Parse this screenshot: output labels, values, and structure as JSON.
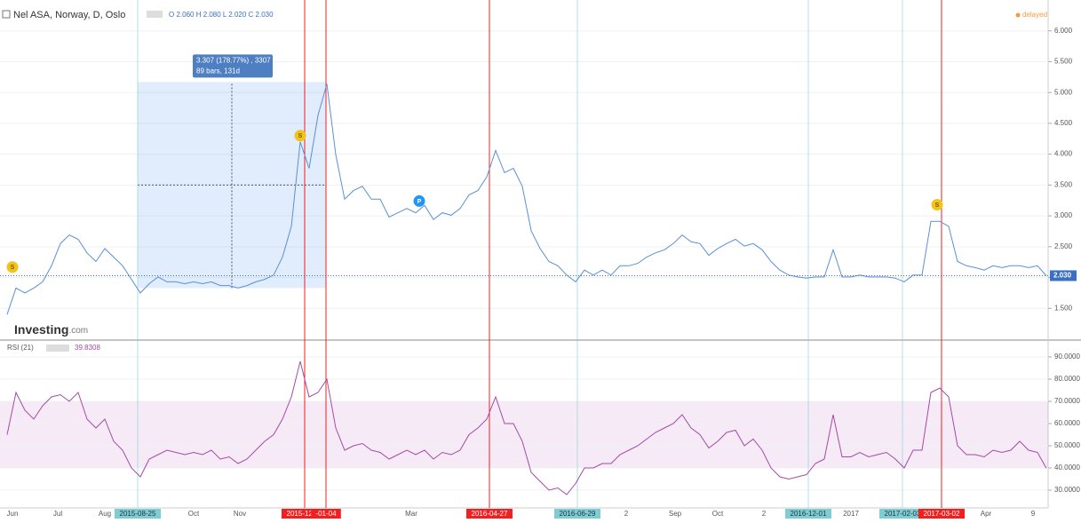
{
  "chart_data": {
    "type": "line",
    "title": "Nel ASA, Norway, D, Oslo",
    "legend_text": "O 2.060 H 2.080 L 2.020 C 2.030",
    "status": "delayed",
    "brand": "Investing",
    "brand_suffix": ".com",
    "xlim": [
      0,
      117
    ],
    "xticks": [
      {
        "value": 0.6,
        "label": "Jun"
      },
      {
        "value": 5.7,
        "label": "Jul"
      },
      {
        "value": 11,
        "label": "Aug"
      },
      {
        "value": 14.7,
        "label": "2015-08-25",
        "color": "#7fcdd3"
      },
      {
        "value": 21,
        "label": "Oct"
      },
      {
        "value": 26.2,
        "label": "Nov"
      },
      {
        "value": 33.5,
        "label": "2015-12-15",
        "color": "#f02020"
      },
      {
        "value": 35.9,
        "label": "-01-04",
        "color": "#f02020"
      },
      {
        "value": 45.5,
        "label": "Mar"
      },
      {
        "value": 54.3,
        "label": "2016-04-27",
        "color": "#f02020"
      },
      {
        "value": 64.2,
        "label": "2016-06-29",
        "color": "#7fcdd3"
      },
      {
        "value": 69.7,
        "label": "2"
      },
      {
        "value": 75.2,
        "label": "Sep"
      },
      {
        "value": 80,
        "label": "Oct"
      },
      {
        "value": 85.2,
        "label": "2"
      },
      {
        "value": 90.2,
        "label": "2016-12-01",
        "color": "#7fcdd3"
      },
      {
        "value": 95,
        "label": "2017"
      },
      {
        "value": 100.8,
        "label": "2017-02-03",
        "color": "#7fcdd3"
      },
      {
        "value": 105.2,
        "label": "2017-03-02",
        "color": "#f02020"
      },
      {
        "value": 110.2,
        "label": "Apr"
      },
      {
        "value": 115.5,
        "label": "9"
      }
    ],
    "price": {
      "name": "Nel ASA",
      "color": "#5b8fd6",
      "ylim": [
        1.0,
        6.5
      ],
      "yticks": [
        {
          "value": 1.5,
          "label": "1.500"
        },
        {
          "value": 2.0,
          "label": "2.000"
        },
        {
          "value": 2.5,
          "label": "2.500"
        },
        {
          "value": 3.0,
          "label": "3.000"
        },
        {
          "value": 3.5,
          "label": "3.500"
        },
        {
          "value": 4.0,
          "label": "4.000"
        },
        {
          "value": 4.5,
          "label": "4.500"
        },
        {
          "value": 5.0,
          "label": "5.000"
        },
        {
          "value": 5.5,
          "label": "5.500"
        },
        {
          "value": 6.0,
          "label": "6.000"
        }
      ],
      "values": [
        1.4,
        1.83,
        1.75,
        1.83,
        1.93,
        2.19,
        2.55,
        2.69,
        2.62,
        2.4,
        2.26,
        2.47,
        2.33,
        2.19,
        1.97,
        1.75,
        1.9,
        2.01,
        1.93,
        1.93,
        1.9,
        1.93,
        1.9,
        1.93,
        1.87,
        1.87,
        1.83,
        1.87,
        1.93,
        1.97,
        2.04,
        2.33,
        2.83,
        4.2,
        3.77,
        4.63,
        5.14,
        3.99,
        3.27,
        3.41,
        3.48,
        3.27,
        3.27,
        2.98,
        3.05,
        3.12,
        3.05,
        3.17,
        2.94,
        3.05,
        3.01,
        3.12,
        3.34,
        3.41,
        3.63,
        4.06,
        3.7,
        3.77,
        3.48,
        2.76,
        2.47,
        2.26,
        2.19,
        2.04,
        1.93,
        2.12,
        2.04,
        2.12,
        2.04,
        2.19,
        2.19,
        2.23,
        2.33,
        2.4,
        2.45,
        2.55,
        2.69,
        2.58,
        2.55,
        2.36,
        2.47,
        2.55,
        2.62,
        2.51,
        2.55,
        2.45,
        2.26,
        2.12,
        2.04,
        2.01,
        1.99,
        2.01,
        2.01,
        2.45,
        2.01,
        2.01,
        2.04,
        2.01,
        2.01,
        2.01,
        1.99,
        1.93,
        2.04,
        2.04,
        2.91,
        2.91,
        2.83,
        2.26,
        2.19,
        2.16,
        2.12,
        2.19,
        2.16,
        2.19,
        2.19,
        2.16,
        2.19,
        2.03
      ],
      "last": {
        "value": 2.03,
        "label": "2.030"
      },
      "measure": {
        "x": [
          14.7,
          35.9
        ],
        "y": [
          1.83,
          5.17
        ],
        "lines": [
          "3.307 (178.77%) , 3307",
          "89 bars, 131d"
        ]
      },
      "events": [
        {
          "label": "S",
          "x": 0.6,
          "y": 2.17,
          "color": "#f2c318"
        },
        {
          "label": "S",
          "x": 33,
          "y": 4.3,
          "color": "#f2c318"
        },
        {
          "label": "P",
          "x": 46.4,
          "y": 3.24,
          "color": "#2196f3"
        },
        {
          "label": "S",
          "x": 104.7,
          "y": 3.18,
          "color": "#f2c318"
        }
      ]
    },
    "rsi": {
      "name": "RSI (21)",
      "color": "#a54aa8",
      "last_label": "39.8308",
      "ylim": [
        22,
        97.2
      ],
      "band": [
        40,
        70
      ],
      "yticks": [
        {
          "value": 30,
          "label": "30.0000"
        },
        {
          "value": 40,
          "label": "40.0000"
        },
        {
          "value": 50,
          "label": "50.0000"
        },
        {
          "value": 60,
          "label": "60.0000"
        },
        {
          "value": 70,
          "label": "70.0000"
        },
        {
          "value": 80,
          "label": "80.0000"
        },
        {
          "value": 90,
          "label": "90.0000"
        }
      ],
      "values": [
        55,
        74,
        66,
        62,
        68,
        72,
        73,
        70,
        74,
        62,
        58,
        62,
        52,
        48,
        40,
        36,
        44,
        46,
        48,
        47,
        46,
        47,
        46,
        48,
        44,
        45,
        42,
        44,
        48,
        52,
        55,
        62,
        72,
        88,
        72,
        74,
        80,
        58,
        48,
        50,
        51,
        48,
        47,
        44,
        46,
        48,
        46,
        48,
        44,
        47,
        46,
        48,
        55,
        58,
        62,
        72,
        60,
        60,
        52,
        38,
        34,
        30,
        31,
        28,
        33,
        40,
        40,
        42,
        42,
        46,
        48,
        50,
        53,
        56,
        58,
        60,
        64,
        58,
        55,
        49,
        52,
        56,
        57,
        50,
        53,
        48,
        40,
        36,
        35,
        36,
        37,
        42,
        44,
        64,
        45,
        45,
        47,
        45,
        46,
        47,
        44,
        40,
        48,
        48,
        74,
        76,
        72,
        50,
        46,
        46,
        45,
        48,
        47,
        48,
        52,
        48,
        47,
        39.83
      ]
    }
  }
}
